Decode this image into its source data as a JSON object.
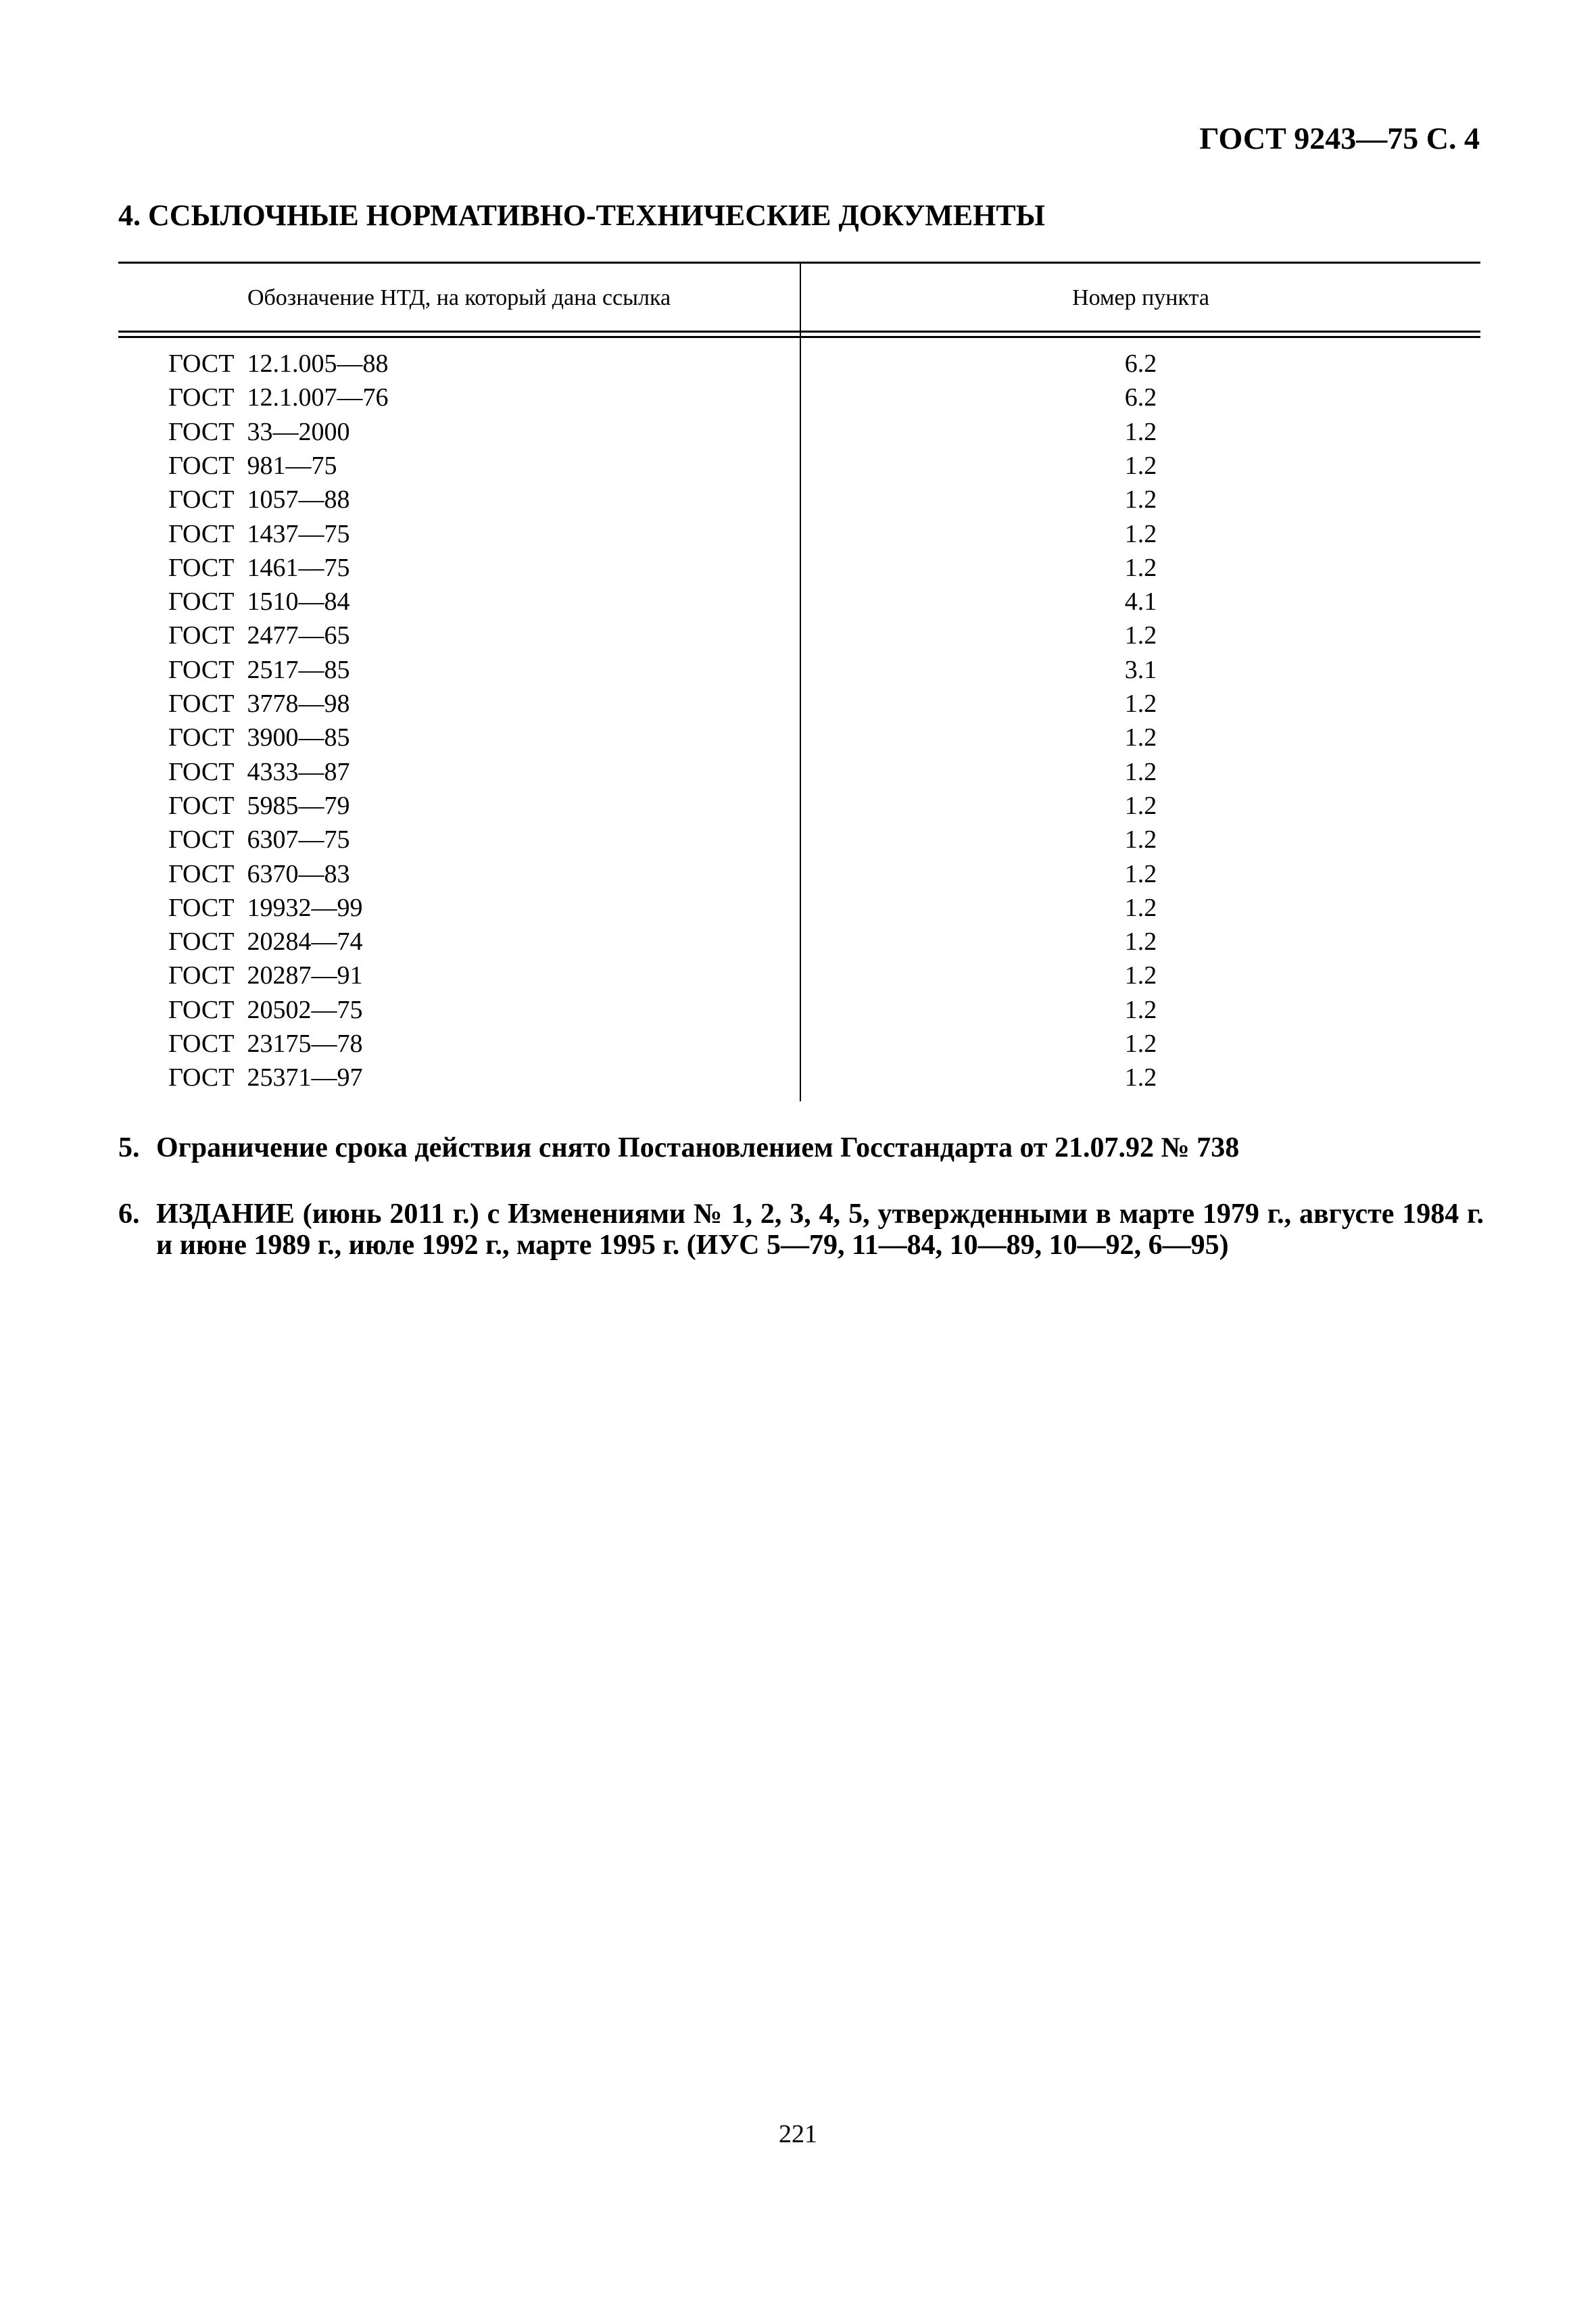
{
  "header": {
    "title": "ГОСТ 9243—75 С. 4"
  },
  "section": {
    "title": "4. ССЫЛОЧНЫЕ НОРМАТИВНО-ТЕХНИЧЕСКИЕ ДОКУМЕНТЫ"
  },
  "table": {
    "columns": [
      "Обозначение НТД, на который дана ссылка",
      "Номер пункта"
    ],
    "rows": [
      [
        "ГОСТ  12.1.005—88",
        "6.2"
      ],
      [
        "ГОСТ  12.1.007—76",
        "6.2"
      ],
      [
        "ГОСТ  33—2000",
        "1.2"
      ],
      [
        "ГОСТ  981—75",
        "1.2"
      ],
      [
        "ГОСТ  1057—88",
        "1.2"
      ],
      [
        "ГОСТ  1437—75",
        "1.2"
      ],
      [
        "ГОСТ  1461—75",
        "1.2"
      ],
      [
        "ГОСТ  1510—84",
        "4.1"
      ],
      [
        "ГОСТ  2477—65",
        "1.2"
      ],
      [
        "ГОСТ  2517—85",
        "3.1"
      ],
      [
        "ГОСТ  3778—98",
        "1.2"
      ],
      [
        "ГОСТ  3900—85",
        "1.2"
      ],
      [
        "ГОСТ  4333—87",
        "1.2"
      ],
      [
        "ГОСТ  5985—79",
        "1.2"
      ],
      [
        "ГОСТ  6307—75",
        "1.2"
      ],
      [
        "ГОСТ  6370—83",
        "1.2"
      ],
      [
        "ГОСТ  19932—99",
        "1.2"
      ],
      [
        "ГОСТ  20284—74",
        "1.2"
      ],
      [
        "ГОСТ  20287—91",
        "1.2"
      ],
      [
        "ГОСТ  20502—75",
        "1.2"
      ],
      [
        "ГОСТ  23175—78",
        "1.2"
      ],
      [
        "ГОСТ  25371—97",
        "1.2"
      ]
    ]
  },
  "notes": [
    {
      "num": "5.",
      "text": "Ограничение срока действия снято Постановлением Госстандарта от 21.07.92 № 738"
    },
    {
      "num": "6.",
      "text": "ИЗДАНИЕ (июнь 2011 г.) с Изменениями № 1, 2, 3, 4, 5, утвержденными в марте 1979 г., августе 1984 г. и июне 1989 г., июле 1992 г., марте 1995 г. (ИУС 5—79, 11—84, 10—89, 10—92, 6—95)"
    }
  ],
  "footer": {
    "page_number": "221"
  }
}
